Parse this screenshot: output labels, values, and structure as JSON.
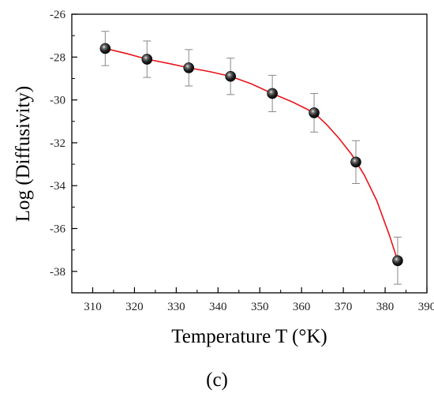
{
  "chart_data": {
    "type": "scatter",
    "xlabel": "Temperature T (°K)",
    "ylabel": "Log (Diffusivity)",
    "panel_label": "(c)",
    "xlim": [
      305,
      390
    ],
    "ylim": [
      -39,
      -26
    ],
    "x_ticks": [
      310,
      320,
      330,
      340,
      350,
      360,
      370,
      380,
      390
    ],
    "y_ticks": [
      -38,
      -36,
      -34,
      -32,
      -30,
      -28,
      -26
    ],
    "x_tick_labels": [
      "310",
      "320",
      "330",
      "340",
      "350",
      "360",
      "370",
      "380",
      "390"
    ],
    "y_tick_labels": [
      "-38",
      "-36",
      "-34",
      "-32",
      "-30",
      "-28",
      "-26"
    ],
    "grid": false,
    "series": [
      {
        "x": [
          313,
          323,
          333,
          343,
          353,
          363,
          373,
          383
        ],
        "y": [
          -27.6,
          -28.1,
          -28.5,
          -28.9,
          -29.7,
          -30.6,
          -32.9,
          -37.5
        ],
        "error": [
          0.8,
          0.85,
          0.85,
          0.85,
          0.85,
          0.9,
          1.0,
          1.1
        ],
        "marker": "sphere",
        "color": "#000000"
      }
    ],
    "fit_curve": {
      "color": "#e8151b",
      "x": [
        313,
        318,
        323,
        328,
        333,
        338,
        343,
        348,
        353,
        358,
        363,
        366,
        369,
        372,
        375,
        378,
        381,
        383
      ],
      "y": [
        -27.6,
        -27.83,
        -28.1,
        -28.29,
        -28.5,
        -28.68,
        -28.9,
        -29.25,
        -29.7,
        -30.11,
        -30.6,
        -31.15,
        -31.8,
        -32.55,
        -33.5,
        -34.7,
        -36.3,
        -37.5
      ]
    }
  }
}
